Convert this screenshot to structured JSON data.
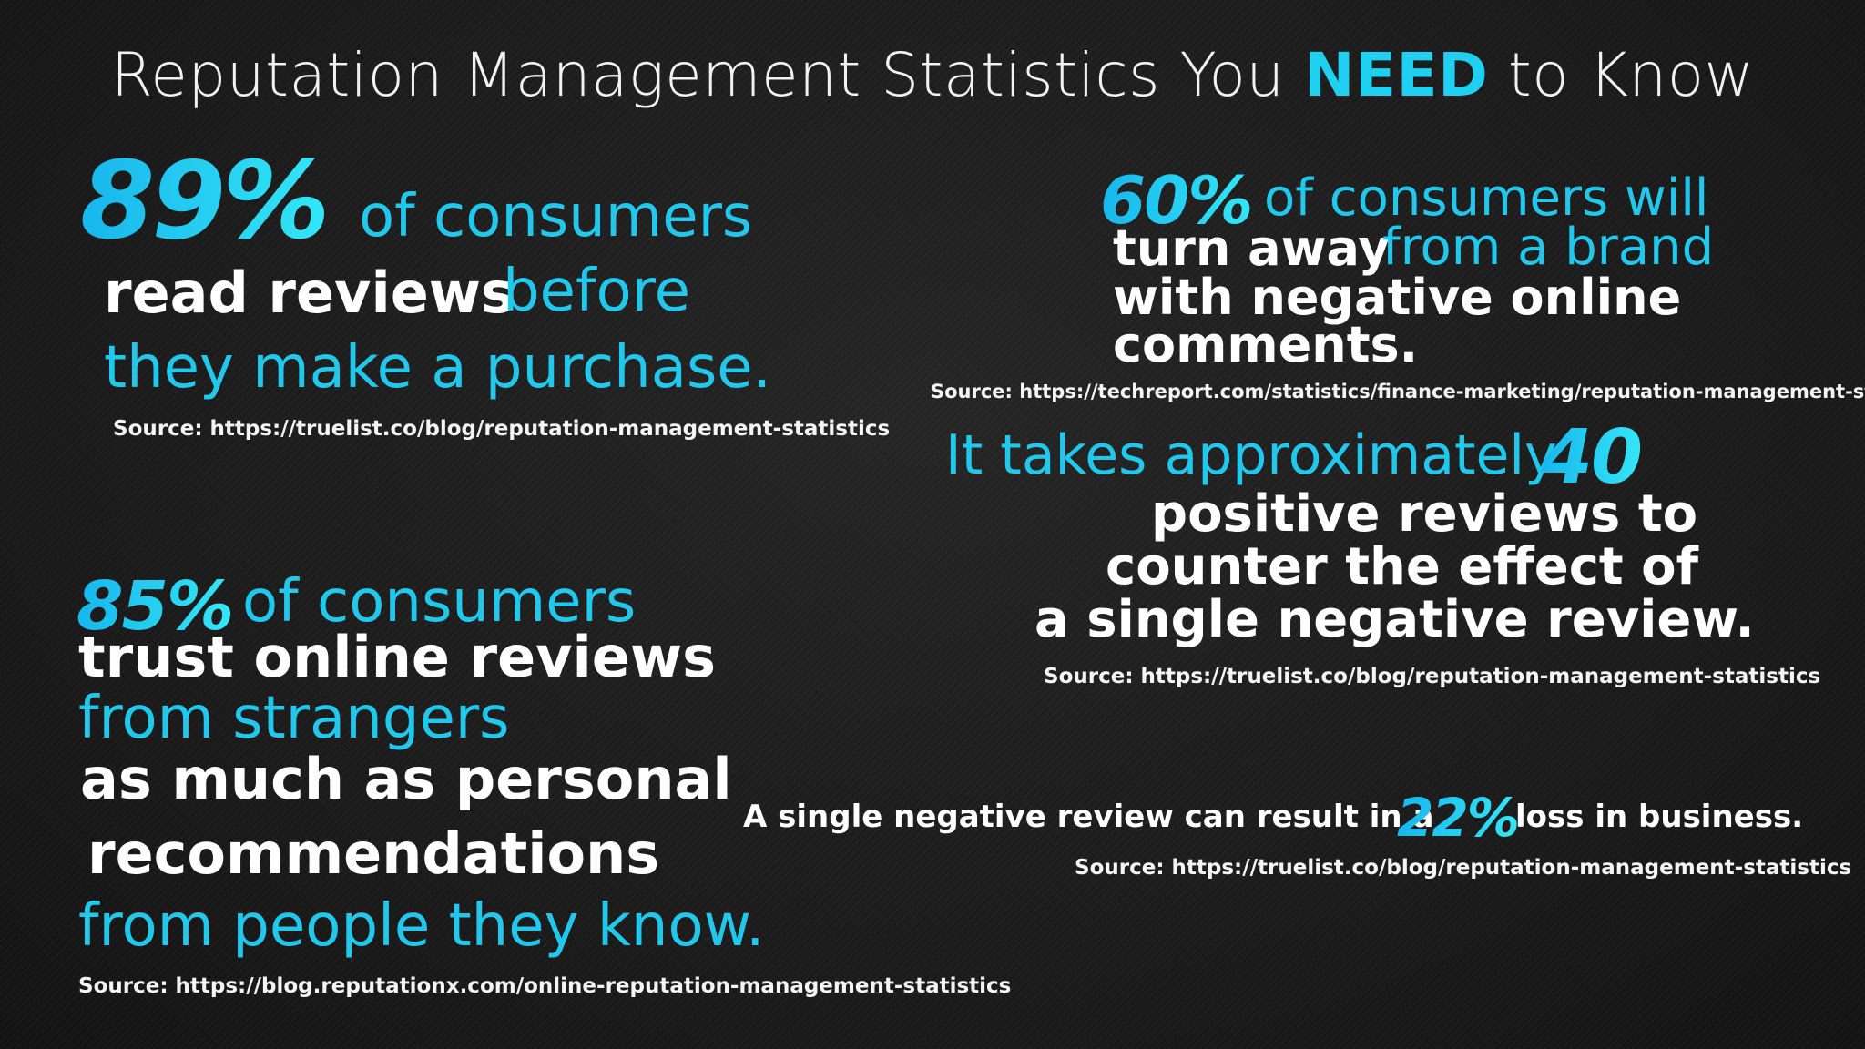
{
  "title": {
    "prefix": "Reputation Management Statistics You ",
    "highlight": "NEED",
    "suffix": " to Know"
  },
  "stat1": {
    "number": "89%",
    "line1": "of consumers",
    "line2_white": "read reviews",
    "line2_cyan": "before",
    "line3": "they make a purchase.",
    "source": "Source: https://truelist.co/blog/reputation-management-statistics"
  },
  "stat2": {
    "number": "60%",
    "line1": "of consumers will",
    "line2_white": "turn away",
    "line2_cyan": "from a brand",
    "line3": "with negative online",
    "line4": "comments.",
    "source": "Source: https://techreport.com/statistics/finance-marketing/reputation-management-statistics"
  },
  "stat3": {
    "line1": "It takes approximately",
    "number": "40",
    "line2": "positive reviews to",
    "line3": "counter the effect of",
    "line4": "a single negative review.",
    "source": "Source: https://truelist.co/blog/reputation-management-statistics"
  },
  "stat4": {
    "number": "85%",
    "line1": "of consumers",
    "line2": "trust online reviews",
    "line3": "from strangers",
    "line4": "as much as personal",
    "line5": "recommendations",
    "line6": "from people they know.",
    "source": "Source: https://blog.reputationx.com/online-reputation-management-statistics"
  },
  "stat5": {
    "prefix": "A single negative review can result in a",
    "number": "22%",
    "suffix": "loss in business.",
    "source": "Source: https://truelist.co/blog/reputation-management-statistics"
  },
  "colors": {
    "background": "#171717",
    "accent": "#22c8ec",
    "text": "#ffffff"
  }
}
